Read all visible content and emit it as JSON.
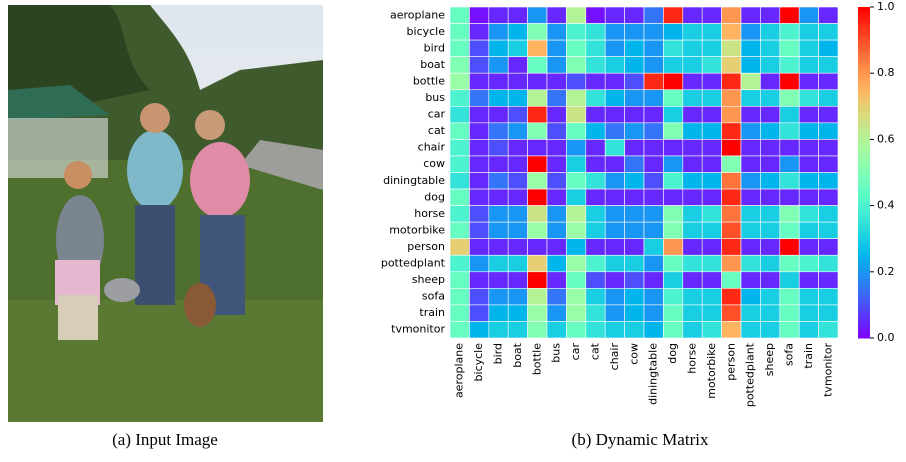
{
  "image": {
    "caption": "(a) Input Image"
  },
  "chart_data": {
    "type": "heatmap",
    "caption": "(b) Dynamic Matrix",
    "colormap": "rainbow",
    "categories": [
      "aeroplane",
      "bicycle",
      "bird",
      "boat",
      "bottle",
      "bus",
      "car",
      "cat",
      "chair",
      "cow",
      "diningtable",
      "dog",
      "horse",
      "motorbike",
      "person",
      "pottedplant",
      "sheep",
      "sofa",
      "train",
      "tvmonitor"
    ],
    "values": [
      [
        0.45,
        0.02,
        0.05,
        0.05,
        0.2,
        0.05,
        0.6,
        0.02,
        0.05,
        0.05,
        0.15,
        0.95,
        0.05,
        0.05,
        0.8,
        0.05,
        0.05,
        1.0,
        0.2,
        0.05
      ],
      [
        0.45,
        0.05,
        0.2,
        0.25,
        0.5,
        0.2,
        0.4,
        0.35,
        0.2,
        0.2,
        0.2,
        0.25,
        0.3,
        0.3,
        0.75,
        0.2,
        0.3,
        0.4,
        0.3,
        0.3
      ],
      [
        0.45,
        0.1,
        0.25,
        0.3,
        0.75,
        0.2,
        0.45,
        0.35,
        0.2,
        0.25,
        0.2,
        0.35,
        0.3,
        0.3,
        0.65,
        0.25,
        0.3,
        0.45,
        0.3,
        0.25
      ],
      [
        0.5,
        0.1,
        0.2,
        0.05,
        0.45,
        0.2,
        0.5,
        0.35,
        0.3,
        0.25,
        0.2,
        0.3,
        0.3,
        0.35,
        0.7,
        0.25,
        0.3,
        0.4,
        0.3,
        0.3
      ],
      [
        0.55,
        0.05,
        0.05,
        0.05,
        0.05,
        0.05,
        0.1,
        0.05,
        0.05,
        0.1,
        0.95,
        1.0,
        0.05,
        0.05,
        0.95,
        0.6,
        0.05,
        1.0,
        0.05,
        0.05
      ],
      [
        0.4,
        0.15,
        0.25,
        0.25,
        0.6,
        0.15,
        0.6,
        0.35,
        0.25,
        0.2,
        0.2,
        0.45,
        0.3,
        0.3,
        0.8,
        0.3,
        0.3,
        0.5,
        0.35,
        0.3
      ],
      [
        0.35,
        0.05,
        0.05,
        0.1,
        0.95,
        0.05,
        0.65,
        0.05,
        0.05,
        0.05,
        0.05,
        0.3,
        0.05,
        0.05,
        0.8,
        0.05,
        0.05,
        0.3,
        0.05,
        0.05
      ],
      [
        0.45,
        0.05,
        0.15,
        0.2,
        0.5,
        0.1,
        0.45,
        0.25,
        0.15,
        0.2,
        0.15,
        0.5,
        0.25,
        0.25,
        0.95,
        0.2,
        0.25,
        0.35,
        0.25,
        0.25
      ],
      [
        0.4,
        0.05,
        0.1,
        0.05,
        0.05,
        0.05,
        0.2,
        0.05,
        0.35,
        0.05,
        0.05,
        0.05,
        0.05,
        0.05,
        1.0,
        0.05,
        0.05,
        0.05,
        0.05,
        0.05
      ],
      [
        0.4,
        0.05,
        0.05,
        0.05,
        1.0,
        0.05,
        0.3,
        0.05,
        0.05,
        0.15,
        0.05,
        0.2,
        0.05,
        0.05,
        0.5,
        0.05,
        0.05,
        0.2,
        0.05,
        0.05
      ],
      [
        0.35,
        0.05,
        0.15,
        0.1,
        0.55,
        0.1,
        0.45,
        0.35,
        0.2,
        0.25,
        0.1,
        0.4,
        0.25,
        0.25,
        0.85,
        0.2,
        0.25,
        0.35,
        0.25,
        0.25
      ],
      [
        0.45,
        0.05,
        0.05,
        0.05,
        1.0,
        0.05,
        0.3,
        0.05,
        0.05,
        0.05,
        0.05,
        0.05,
        0.05,
        0.05,
        0.95,
        0.05,
        0.05,
        0.05,
        0.05,
        0.05
      ],
      [
        0.4,
        0.1,
        0.2,
        0.2,
        0.65,
        0.2,
        0.6,
        0.3,
        0.2,
        0.2,
        0.2,
        0.5,
        0.3,
        0.35,
        0.85,
        0.3,
        0.3,
        0.5,
        0.35,
        0.3
      ],
      [
        0.45,
        0.1,
        0.2,
        0.2,
        0.55,
        0.2,
        0.55,
        0.3,
        0.2,
        0.2,
        0.2,
        0.5,
        0.3,
        0.3,
        0.9,
        0.3,
        0.3,
        0.45,
        0.3,
        0.3
      ],
      [
        0.7,
        0.05,
        0.05,
        0.05,
        0.05,
        0.05,
        0.25,
        0.05,
        0.05,
        0.05,
        0.3,
        0.8,
        0.05,
        0.05,
        0.95,
        0.05,
        0.05,
        1.0,
        0.05,
        0.05
      ],
      [
        0.4,
        0.2,
        0.3,
        0.3,
        0.7,
        0.25,
        0.55,
        0.4,
        0.3,
        0.3,
        0.2,
        0.45,
        0.35,
        0.35,
        0.8,
        0.35,
        0.3,
        0.45,
        0.4,
        0.35
      ],
      [
        0.45,
        0.05,
        0.05,
        0.05,
        1.0,
        0.05,
        0.45,
        0.1,
        0.05,
        0.1,
        0.05,
        0.3,
        0.05,
        0.05,
        0.45,
        0.05,
        0.05,
        0.3,
        0.05,
        0.05
      ],
      [
        0.45,
        0.1,
        0.2,
        0.2,
        0.6,
        0.15,
        0.55,
        0.3,
        0.2,
        0.25,
        0.2,
        0.4,
        0.3,
        0.3,
        0.95,
        0.25,
        0.3,
        0.45,
        0.3,
        0.3
      ],
      [
        0.45,
        0.1,
        0.25,
        0.25,
        0.55,
        0.2,
        0.55,
        0.35,
        0.2,
        0.25,
        0.2,
        0.45,
        0.3,
        0.3,
        0.9,
        0.3,
        0.3,
        0.45,
        0.3,
        0.3
      ],
      [
        0.45,
        0.25,
        0.3,
        0.3,
        0.5,
        0.3,
        0.45,
        0.35,
        0.3,
        0.3,
        0.25,
        0.45,
        0.3,
        0.35,
        0.75,
        0.3,
        0.3,
        0.45,
        0.3,
        0.35
      ]
    ],
    "clim": [
      0,
      1
    ],
    "cticks": [
      {
        "value": 0,
        "label": "0.0"
      },
      0.2,
      0.4,
      0.6,
      0.8,
      {
        "value": 1,
        "label": "1.0"
      }
    ]
  }
}
